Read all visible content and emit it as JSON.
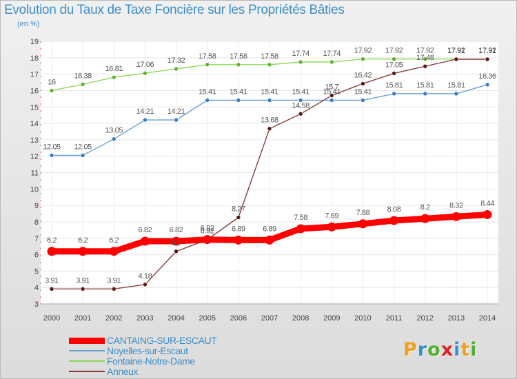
{
  "header": {
    "title": "Evolution du Taux de Taxe Foncière sur les Propriétés Bâties",
    "unit": "(en %)"
  },
  "logo": {
    "text": "Proxiti",
    "letter_colors": [
      "#f0a020",
      "#3a8fd0",
      "#50b030",
      "#e02020",
      "#3a8fd0",
      "#f0a020",
      "#50b030"
    ]
  },
  "chart_data": {
    "type": "line",
    "title": "Evolution du Taux de Taxe Foncière sur les Propriétés Bâties",
    "ylabel": "(en %)",
    "xlabel": "",
    "x": [
      2000,
      2001,
      2002,
      2003,
      2004,
      2005,
      2006,
      2007,
      2008,
      2009,
      2010,
      2011,
      2012,
      2013,
      2014
    ],
    "ylim": [
      3,
      19
    ],
    "yticks": [
      3,
      4,
      5,
      6,
      7,
      8,
      9,
      10,
      11,
      12,
      13,
      14,
      15,
      16,
      17,
      18,
      19
    ],
    "grid": true,
    "legend_position": "bottom-left",
    "series": [
      {
        "name": "CANTAING-SUR-ESCAUT",
        "color": "#ff0000",
        "marker_color": "#ff0000",
        "emphasis": true,
        "values": [
          6.2,
          6.2,
          6.2,
          6.82,
          6.82,
          6.92,
          6.89,
          6.89,
          7.58,
          7.69,
          7.88,
          8.08,
          8.2,
          8.32,
          8.44
        ]
      },
      {
        "name": "Noyelles-sur-Escaut",
        "color": "#6a9fd3",
        "marker_color": "#3a7cc0",
        "values": [
          12.05,
          12.05,
          13.05,
          14.21,
          14.21,
          15.41,
          15.41,
          15.41,
          15.41,
          15.41,
          15.41,
          15.81,
          15.81,
          15.81,
          16.36
        ]
      },
      {
        "name": "Fontaine-Notre-Dame",
        "color": "#8fd65a",
        "marker_color": "#60b030",
        "values": [
          16,
          16.38,
          16.81,
          17.06,
          17.32,
          17.58,
          17.58,
          17.58,
          17.74,
          17.74,
          17.92,
          17.92,
          17.92,
          17.92,
          17.92
        ]
      },
      {
        "name": "Anneux",
        "color": "#8a3c3c",
        "marker_color": "#5a1414",
        "values": [
          3.91,
          3.91,
          3.91,
          4.18,
          6.2,
          6.92,
          8.27,
          13.68,
          14.58,
          15.7,
          16.42,
          17.05,
          17.48,
          17.91,
          17.91
        ]
      }
    ],
    "labels": [
      {
        "series": 0,
        "texts": [
          "6.2",
          "6.2",
          "6.2",
          "6.82",
          "6.82",
          "6.92",
          "6.89",
          "6.89",
          "7.58",
          "7.69",
          "7.88",
          "8.08",
          "8.2",
          "8.32",
          "8.44"
        ]
      },
      {
        "series": 1,
        "texts": [
          "12.05",
          "12.05",
          "13.05",
          "14.21",
          "14.21",
          "15.41",
          "15.41",
          "15.41",
          "15.41",
          "15.41",
          "15.41",
          "15.81",
          "15.81",
          "15.81",
          "16.36"
        ]
      },
      {
        "series": 2,
        "texts": [
          "16",
          "16.38",
          "16.81",
          "17.06",
          "17.32",
          "17.58",
          "17.58",
          "17.58",
          "17.74",
          "17.74",
          "17.92",
          "17.92",
          "17.92",
          "17.92",
          "17.92"
        ]
      },
      {
        "series": 3,
        "texts": [
          "3.91",
          "3.91",
          "3.91",
          "4.18",
          "6.2",
          "6.92",
          "8.27",
          "13.68",
          "14.58",
          "15.7",
          "16.42",
          "17.05",
          "17.48",
          "17.91",
          "17.91"
        ]
      }
    ]
  }
}
